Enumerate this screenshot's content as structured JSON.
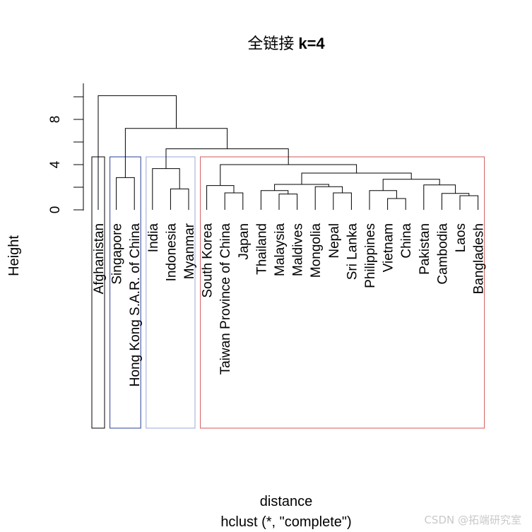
{
  "chart_data": {
    "type": "dendrogram",
    "title_cjk": "全链接",
    "title_rest": "k=4",
    "xlabel": "distance",
    "sublabel": "hclust (*, \"complete\")",
    "ylabel": "Height",
    "yticks": [
      0,
      4,
      8
    ],
    "ylim": [
      0,
      10
    ],
    "leaves": [
      "Afghanistan",
      "Singapore",
      "Hong Kong S.A.R. of China",
      "India",
      "Indonesia",
      "Myanmar",
      "South Korea",
      "Taiwan Province of China",
      "Japan",
      "Thailand",
      "Malaysia",
      "Maldives",
      "Mongolia",
      "Nepal",
      "Sri Lanka",
      "Philippines",
      "Vietnam",
      "China",
      "Pakistan",
      "Cambodia",
      "Laos",
      "Bangladesh"
    ],
    "merges": [
      {
        "a": 20,
        "b": 21,
        "h": 1.25
      },
      {
        "a": 19,
        "b": -1,
        "h": 1.45
      },
      {
        "a": 10,
        "b": 11,
        "h": 1.4
      },
      {
        "a": 13,
        "b": 14,
        "h": 1.5
      },
      {
        "a": 7,
        "b": 8,
        "h": 1.5
      },
      {
        "a": 16,
        "b": 17,
        "h": 1.0
      },
      {
        "a": 15,
        "b": -6,
        "h": 1.7
      },
      {
        "a": 4,
        "b": 5,
        "h": 1.85
      },
      {
        "a": 18,
        "b": -2,
        "h": 2.2
      },
      {
        "a": 12,
        "b": -4,
        "h": 2.05
      },
      {
        "a": 9,
        "b": -3,
        "h": 1.7
      },
      {
        "a": 6,
        "b": -5,
        "h": 2.15
      },
      {
        "a": -11,
        "b": -10,
        "h": 2.25
      },
      {
        "a": -7,
        "b": -9,
        "h": 2.7
      },
      {
        "a": 1,
        "b": 2,
        "h": 2.85
      },
      {
        "a": -13,
        "b": -14,
        "h": 3.25
      },
      {
        "a": 3,
        "b": -8,
        "h": 3.65
      },
      {
        "a": -12,
        "b": -16,
        "h": 4.0
      },
      {
        "a": -17,
        "b": -18,
        "h": 5.4
      },
      {
        "a": -15,
        "b": -19,
        "h": 7.2
      },
      {
        "a": 0,
        "b": -20,
        "h": 10.1
      }
    ],
    "clusters": [
      {
        "from": 0,
        "to": 0,
        "color": "#000000"
      },
      {
        "from": 1,
        "to": 2,
        "color": "#2b3f9a"
      },
      {
        "from": 3,
        "to": 5,
        "color": "#9aa8d8"
      },
      {
        "from": 6,
        "to": 21,
        "color": "#d25a5a"
      }
    ],
    "watermark": "CSDN @拓端研究室"
  }
}
